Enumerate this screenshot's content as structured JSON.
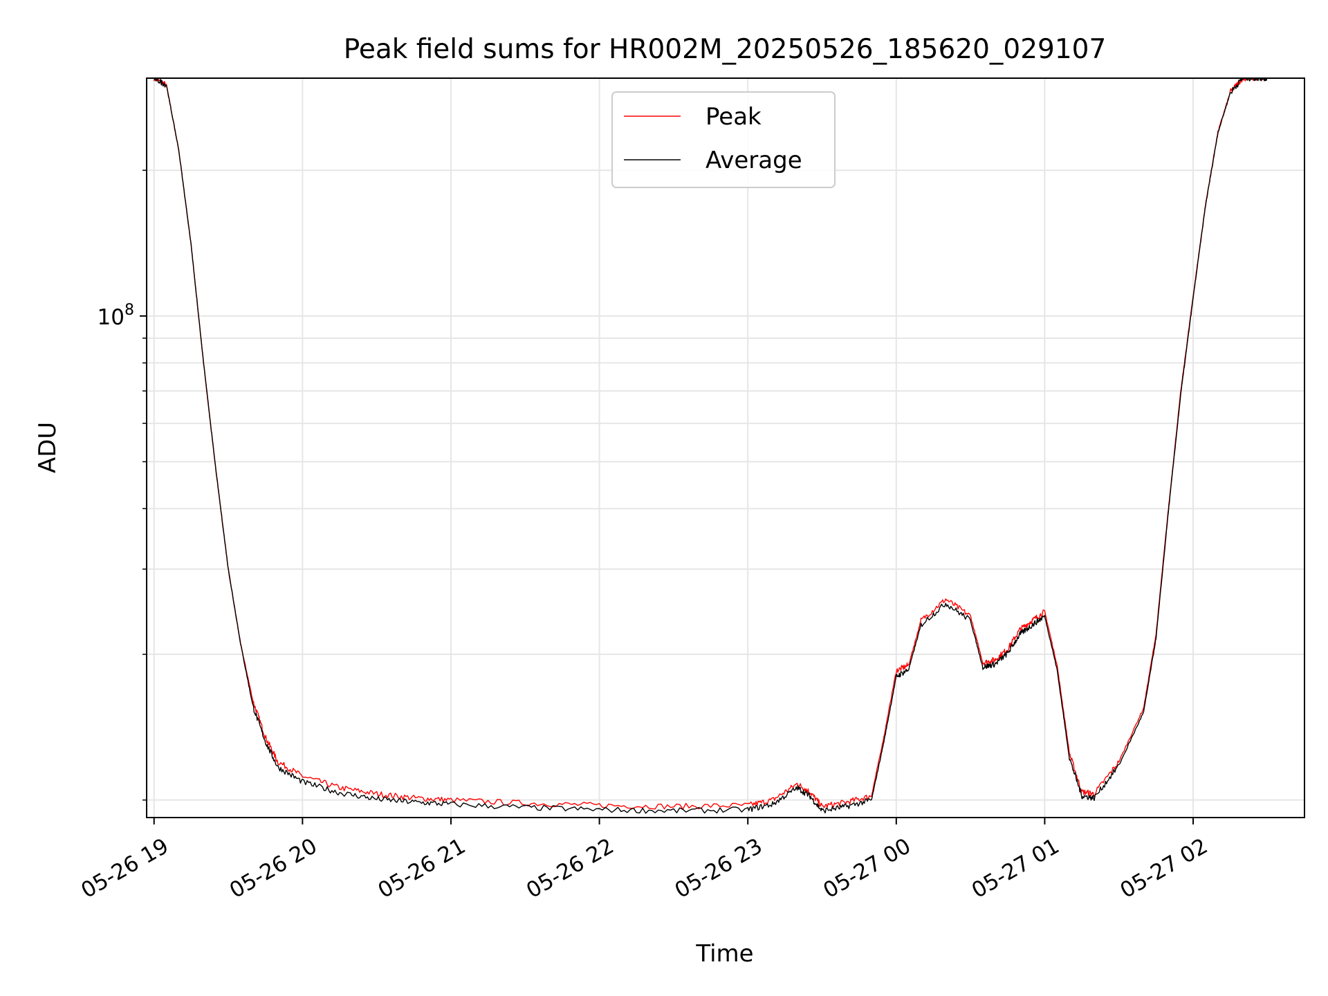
{
  "chart_data": {
    "type": "line",
    "title": "Peak field sums for HR002M_20250526_185620_029107",
    "xlabel": "Time",
    "ylabel": "ADU",
    "y_scale": "log",
    "ylim": [
      9200000,
      310000000
    ],
    "xlim": [
      "2025-05-26 18:57",
      "2025-05-27 02:45"
    ],
    "x_ticks": [
      {
        "time": "2025-05-26 19:00",
        "label": "05-26 19"
      },
      {
        "time": "2025-05-26 20:00",
        "label": "05-26 20"
      },
      {
        "time": "2025-05-26 21:00",
        "label": "05-26 21"
      },
      {
        "time": "2025-05-26 22:00",
        "label": "05-26 22"
      },
      {
        "time": "2025-05-26 23:00",
        "label": "05-26 23"
      },
      {
        "time": "2025-05-27 00:00",
        "label": "05-27 00"
      },
      {
        "time": "2025-05-27 01:00",
        "label": "05-27 01"
      },
      {
        "time": "2025-05-27 02:00",
        "label": "05-27 02"
      }
    ],
    "y_major_ticks": [
      {
        "value": 100000000,
        "label": "10",
        "exponent": "8"
      }
    ],
    "y_minor_ticks": [
      10000000,
      20000000,
      30000000,
      40000000,
      50000000,
      60000000,
      70000000,
      80000000,
      90000000,
      200000000
    ],
    "grid": true,
    "legend_position": "top-center",
    "series": [
      {
        "name": "Peak",
        "color": "#ff0000",
        "x": [
          "2025-05-26 19:00",
          "2025-05-26 19:05",
          "2025-05-26 19:10",
          "2025-05-26 19:15",
          "2025-05-26 19:20",
          "2025-05-26 19:25",
          "2025-05-26 19:30",
          "2025-05-26 19:35",
          "2025-05-26 19:40",
          "2025-05-26 19:45",
          "2025-05-26 19:50",
          "2025-05-26 20:00",
          "2025-05-26 20:15",
          "2025-05-26 20:30",
          "2025-05-26 20:45",
          "2025-05-26 21:00",
          "2025-05-26 21:30",
          "2025-05-26 22:00",
          "2025-05-26 22:30",
          "2025-05-26 23:00",
          "2025-05-26 23:10",
          "2025-05-26 23:20",
          "2025-05-26 23:25",
          "2025-05-26 23:30",
          "2025-05-26 23:40",
          "2025-05-26 23:50",
          "2025-05-26 23:55",
          "2025-05-27 00:00",
          "2025-05-27 00:05",
          "2025-05-27 00:10",
          "2025-05-27 00:20",
          "2025-05-27 00:30",
          "2025-05-27 00:35",
          "2025-05-27 00:40",
          "2025-05-27 00:45",
          "2025-05-27 00:50",
          "2025-05-27 00:55",
          "2025-05-27 01:00",
          "2025-05-27 01:05",
          "2025-05-27 01:10",
          "2025-05-27 01:15",
          "2025-05-27 01:20",
          "2025-05-27 01:30",
          "2025-05-27 01:40",
          "2025-05-27 01:45",
          "2025-05-27 01:50",
          "2025-05-27 01:55",
          "2025-05-27 02:00",
          "2025-05-27 02:05",
          "2025-05-27 02:10",
          "2025-05-27 02:15",
          "2025-05-27 02:20",
          "2025-05-27 02:25",
          "2025-05-27 02:30"
        ],
        "values": [
          310000000,
          300000000,
          220000000,
          140000000,
          80000000,
          48000000,
          30000000,
          21000000,
          16000000,
          13500000,
          12000000,
          11200000,
          10600000,
          10300000,
          10100000,
          10000000,
          9850000,
          9750000,
          9700000,
          9750000,
          10000000,
          10800000,
          10400000,
          9700000,
          9900000,
          10200000,
          13500000,
          18500000,
          19000000,
          23500000,
          26000000,
          24000000,
          19200000,
          19500000,
          20500000,
          22500000,
          23500000,
          24500000,
          19000000,
          12500000,
          10400000,
          10300000,
          12000000,
          15500000,
          22000000,
          40000000,
          70000000,
          110000000,
          170000000,
          240000000,
          290000000,
          310000000,
          310000000,
          310000000
        ]
      },
      {
        "name": "Average",
        "color": "#000000",
        "x": [
          "2025-05-26 19:00",
          "2025-05-26 19:05",
          "2025-05-26 19:10",
          "2025-05-26 19:15",
          "2025-05-26 19:20",
          "2025-05-26 19:25",
          "2025-05-26 19:30",
          "2025-05-26 19:35",
          "2025-05-26 19:40",
          "2025-05-26 19:45",
          "2025-05-26 19:50",
          "2025-05-26 20:00",
          "2025-05-26 20:15",
          "2025-05-26 20:30",
          "2025-05-26 20:45",
          "2025-05-26 21:00",
          "2025-05-26 21:30",
          "2025-05-26 22:00",
          "2025-05-26 22:30",
          "2025-05-26 23:00",
          "2025-05-26 23:10",
          "2025-05-26 23:20",
          "2025-05-26 23:25",
          "2025-05-26 23:30",
          "2025-05-26 23:40",
          "2025-05-26 23:50",
          "2025-05-26 23:55",
          "2025-05-27 00:00",
          "2025-05-27 00:05",
          "2025-05-27 00:10",
          "2025-05-27 00:20",
          "2025-05-27 00:30",
          "2025-05-27 00:35",
          "2025-05-27 00:40",
          "2025-05-27 00:45",
          "2025-05-27 00:50",
          "2025-05-27 00:55",
          "2025-05-27 01:00",
          "2025-05-27 01:05",
          "2025-05-27 01:10",
          "2025-05-27 01:15",
          "2025-05-27 01:20",
          "2025-05-27 01:30",
          "2025-05-27 01:40",
          "2025-05-27 01:45",
          "2025-05-27 01:50",
          "2025-05-27 01:55",
          "2025-05-27 02:00",
          "2025-05-27 02:05",
          "2025-05-27 02:10",
          "2025-05-27 02:15",
          "2025-05-27 02:20",
          "2025-05-27 02:25",
          "2025-05-27 02:30"
        ],
        "values": [
          310000000,
          300000000,
          220000000,
          140000000,
          80000000,
          48000000,
          30000000,
          21000000,
          15600000,
          13200000,
          11700000,
          10900000,
          10350000,
          10050000,
          9900000,
          9800000,
          9650000,
          9550000,
          9500000,
          9550000,
          9800000,
          10600000,
          10200000,
          9500000,
          9700000,
          10000000,
          13200000,
          18000000,
          18600000,
          23000000,
          25500000,
          23500000,
          18800000,
          19100000,
          20100000,
          22000000,
          23000000,
          24000000,
          18600000,
          12200000,
          10200000,
          10100000,
          11800000,
          15200000,
          21600000,
          39500000,
          69000000,
          109000000,
          169000000,
          239000000,
          289000000,
          310000000,
          310000000,
          310000000
        ]
      }
    ]
  }
}
